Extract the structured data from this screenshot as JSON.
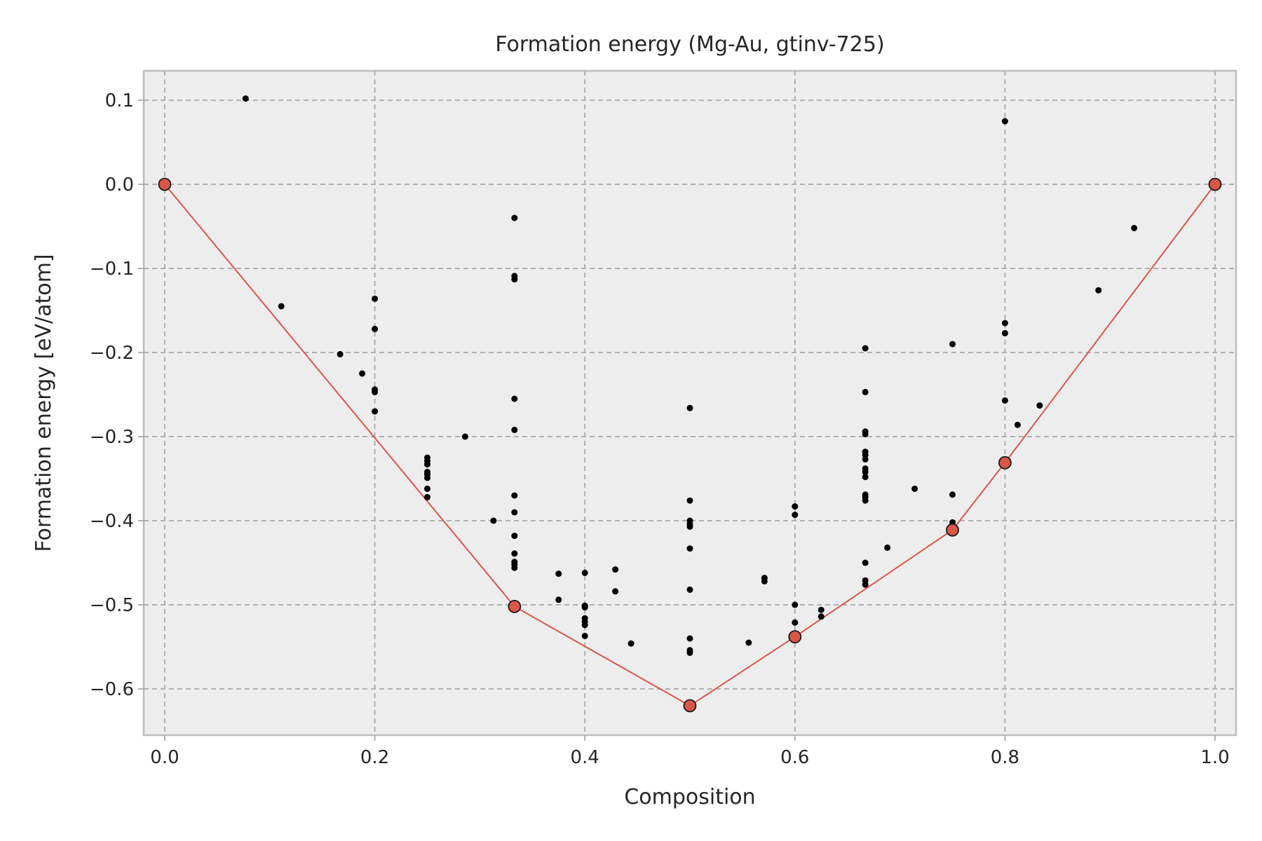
{
  "chart_data": {
    "type": "scatter",
    "title": "Formation energy (Mg-Au, gtinv-725)",
    "xlabel": "Composition",
    "ylabel": "Formation energy [eV/atom]",
    "xlim": [
      -0.02,
      1.02
    ],
    "ylim": [
      -0.655,
      0.135
    ],
    "grid": true,
    "xticks": [
      0.0,
      0.2,
      0.4,
      0.6,
      0.8,
      1.0
    ],
    "xtick_labels": [
      "0.0",
      "0.2",
      "0.4",
      "0.6",
      "0.8",
      "1.0"
    ],
    "yticks": [
      0.1,
      0.0,
      -0.1,
      -0.2,
      -0.3,
      -0.4,
      -0.5,
      -0.6
    ],
    "ytick_labels": [
      "0.1",
      "0.0",
      "−0.1",
      "−0.2",
      "−0.3",
      "−0.4",
      "−0.5",
      "−0.6"
    ],
    "colors": {
      "hull": "#d9574a",
      "points": "#000000",
      "background": "#ededed"
    },
    "series": [
      {
        "kind": "scatter",
        "points": [
          [
            0.077,
            0.102
          ],
          [
            0.111,
            -0.145
          ],
          [
            0.167,
            -0.202
          ],
          [
            0.188,
            -0.225
          ],
          [
            0.2,
            -0.136
          ],
          [
            0.2,
            -0.172
          ],
          [
            0.2,
            -0.244
          ],
          [
            0.2,
            -0.247
          ],
          [
            0.2,
            -0.27
          ],
          [
            0.25,
            -0.325
          ],
          [
            0.25,
            -0.329
          ],
          [
            0.25,
            -0.333
          ],
          [
            0.25,
            -0.342
          ],
          [
            0.25,
            -0.345
          ],
          [
            0.25,
            -0.349
          ],
          [
            0.25,
            -0.362
          ],
          [
            0.25,
            -0.372
          ],
          [
            0.286,
            -0.3
          ],
          [
            0.313,
            -0.4
          ],
          [
            0.333,
            -0.04
          ],
          [
            0.333,
            -0.109
          ],
          [
            0.333,
            -0.113
          ],
          [
            0.333,
            -0.255
          ],
          [
            0.333,
            -0.292
          ],
          [
            0.333,
            -0.37
          ],
          [
            0.333,
            -0.39
          ],
          [
            0.333,
            -0.418
          ],
          [
            0.333,
            -0.439
          ],
          [
            0.333,
            -0.449
          ],
          [
            0.333,
            -0.452
          ],
          [
            0.333,
            -0.456
          ],
          [
            0.375,
            -0.463
          ],
          [
            0.375,
            -0.494
          ],
          [
            0.4,
            -0.462
          ],
          [
            0.4,
            -0.501
          ],
          [
            0.4,
            -0.503
          ],
          [
            0.4,
            -0.516
          ],
          [
            0.4,
            -0.52
          ],
          [
            0.4,
            -0.524
          ],
          [
            0.4,
            -0.537
          ],
          [
            0.429,
            -0.458
          ],
          [
            0.429,
            -0.484
          ],
          [
            0.444,
            -0.546
          ],
          [
            0.5,
            -0.266
          ],
          [
            0.5,
            -0.376
          ],
          [
            0.5,
            -0.4
          ],
          [
            0.5,
            -0.404
          ],
          [
            0.5,
            -0.407
          ],
          [
            0.5,
            -0.433
          ],
          [
            0.5,
            -0.482
          ],
          [
            0.5,
            -0.54
          ],
          [
            0.5,
            -0.554
          ],
          [
            0.5,
            -0.557
          ],
          [
            0.556,
            -0.545
          ],
          [
            0.571,
            -0.468
          ],
          [
            0.571,
            -0.472
          ],
          [
            0.6,
            -0.383
          ],
          [
            0.6,
            -0.393
          ],
          [
            0.6,
            -0.5
          ],
          [
            0.6,
            -0.521
          ],
          [
            0.625,
            -0.506
          ],
          [
            0.625,
            -0.514
          ],
          [
            0.667,
            -0.195
          ],
          [
            0.667,
            -0.247
          ],
          [
            0.667,
            -0.294
          ],
          [
            0.667,
            -0.297
          ],
          [
            0.667,
            -0.318
          ],
          [
            0.667,
            -0.322
          ],
          [
            0.667,
            -0.327
          ],
          [
            0.667,
            -0.338
          ],
          [
            0.667,
            -0.342
          ],
          [
            0.667,
            -0.348
          ],
          [
            0.667,
            -0.369
          ],
          [
            0.667,
            -0.372
          ],
          [
            0.667,
            -0.376
          ],
          [
            0.667,
            -0.45
          ],
          [
            0.667,
            -0.471
          ],
          [
            0.667,
            -0.476
          ],
          [
            0.688,
            -0.432
          ],
          [
            0.714,
            -0.362
          ],
          [
            0.75,
            -0.19
          ],
          [
            0.75,
            -0.369
          ],
          [
            0.75,
            -0.402
          ],
          [
            0.8,
            0.075
          ],
          [
            0.8,
            -0.165
          ],
          [
            0.8,
            -0.177
          ],
          [
            0.8,
            -0.257
          ],
          [
            0.812,
            -0.286
          ],
          [
            0.833,
            -0.263
          ],
          [
            0.889,
            -0.126
          ],
          [
            0.923,
            -0.052
          ]
        ]
      },
      {
        "kind": "hull",
        "points": [
          [
            0.0,
            0.0
          ],
          [
            0.333,
            -0.502
          ],
          [
            0.5,
            -0.62
          ],
          [
            0.6,
            -0.538
          ],
          [
            0.75,
            -0.411
          ],
          [
            0.8,
            -0.331
          ],
          [
            1.0,
            0.0
          ]
        ]
      }
    ]
  }
}
